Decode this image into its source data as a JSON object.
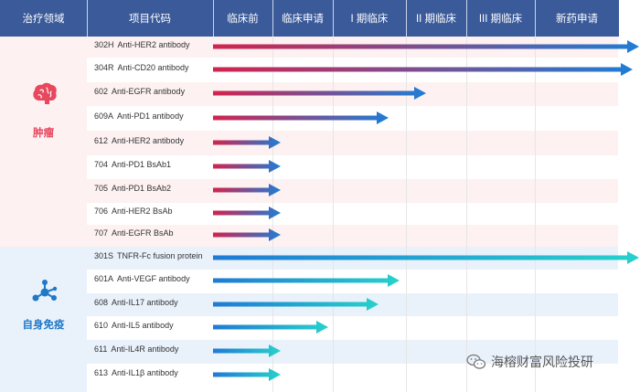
{
  "header": {
    "area": "治疗领域",
    "project": "项目代码",
    "stages": [
      "临床前",
      "临床申请",
      "I 期临床",
      "II 期临床",
      "III 期临床",
      "新药申请"
    ]
  },
  "areas": [
    {
      "label": "肿瘤",
      "icon": "brain-icon",
      "color": "#e8475e"
    },
    {
      "label": "自身免疫",
      "icon": "molecule-icon",
      "color": "#1f78c8"
    }
  ],
  "projects": [
    {
      "code": "302H",
      "name": "Anti-HER2 antibody",
      "progress": 6.3
    },
    {
      "code": "304R",
      "name": "Anti-CD20 antibody",
      "progress": 6.2
    },
    {
      "code": "602",
      "name": "Anti-EGFR antibody",
      "progress": 3.15
    },
    {
      "code": "609A",
      "name": "Anti-PD1 antibody",
      "progress": 2.6
    },
    {
      "code": "612",
      "name": "Anti-HER2 antibody",
      "progress": 1.0
    },
    {
      "code": "704",
      "name": "Anti-PD1 BsAb1",
      "progress": 1.0
    },
    {
      "code": "705",
      "name": "Anti-PD1 BsAb2",
      "progress": 1.0
    },
    {
      "code": "706",
      "name": "Anti-HER2 BsAb",
      "progress": 1.0
    },
    {
      "code": "707",
      "name": "Anti-EGFR BsAb",
      "progress": 1.0
    },
    {
      "code": "301S",
      "name": "TNFR-Fc fusion protein",
      "progress": 6.3
    },
    {
      "code": "601A",
      "name": "Anti-VEGF antibody",
      "progress": 2.75
    },
    {
      "code": "608",
      "name": "Anti-IL17 antibody",
      "progress": 2.45
    },
    {
      "code": "610",
      "name": "Anti-IL5 antibody",
      "progress": 1.7
    },
    {
      "code": "611",
      "name": "Anti-IL4R antibody",
      "progress": 1.0
    },
    {
      "code": "613",
      "name": "Anti-IL1β antibody",
      "progress": 1.0
    }
  ],
  "colors": {
    "header": "#3a5a9a",
    "oncology_start": "#d2234f",
    "oncology_end": "#1f7dd6",
    "immuno_start": "#1f7ad4",
    "immuno_end": "#27d1cc"
  },
  "watermark": "海榕财富风险投研"
}
